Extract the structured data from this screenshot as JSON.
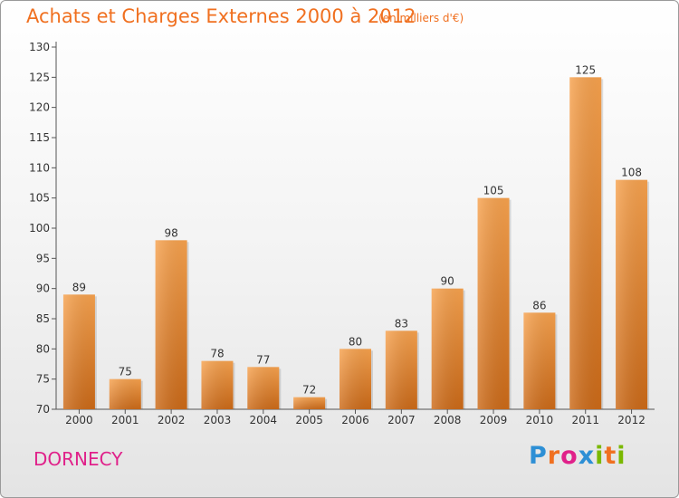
{
  "title": "Achats et Charges Externes 2000 à 2012",
  "subtitle": "(en milliers d'€)",
  "commune": "DORNECY",
  "logo": {
    "letters": [
      "P",
      "r",
      "o",
      "x",
      "i",
      "t",
      "i"
    ],
    "colors": [
      "#2d8fd5",
      "#f07020",
      "#e0218a",
      "#2d8fd5",
      "#7ab800",
      "#f07020",
      "#7ab800"
    ]
  },
  "colors": {
    "title": "#f07020",
    "commune": "#e0218a",
    "bar_top": "#f7a24e",
    "bar_bottom": "#cc6a18"
  },
  "chart_data": {
    "type": "bar",
    "title": "Achats et Charges Externes 2000 à 2012",
    "subtitle": "(en milliers d'€)",
    "xlabel": "",
    "ylabel": "",
    "categories": [
      "2000",
      "2001",
      "2002",
      "2003",
      "2004",
      "2005",
      "2006",
      "2007",
      "2008",
      "2009",
      "2010",
      "2011",
      "2012"
    ],
    "values": [
      89,
      75,
      98,
      78,
      77,
      72,
      80,
      83,
      90,
      105,
      86,
      125,
      108
    ],
    "ylim": [
      70,
      130
    ],
    "yticks": [
      70,
      75,
      80,
      85,
      90,
      95,
      100,
      105,
      110,
      115,
      120,
      125,
      130
    ],
    "grid": false
  }
}
